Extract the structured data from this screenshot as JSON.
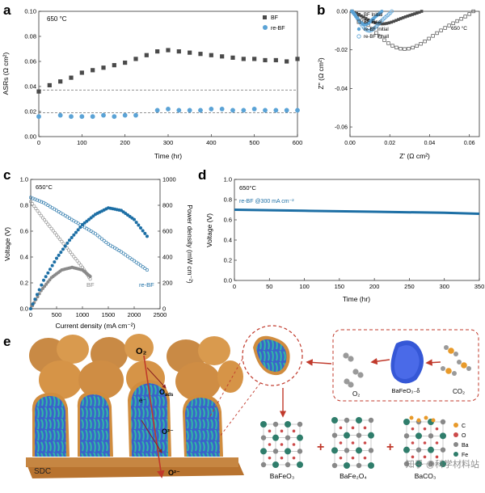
{
  "panels": [
    {
      "id": "a",
      "letter": "a",
      "temperature": "650 °C",
      "chart_data": {
        "type": "scatter",
        "xlabel": "Time (hr)",
        "ylabel": "ASRs (Ω cm²)",
        "xlim": [
          0,
          600
        ],
        "ylim": [
          0,
          0.1
        ],
        "xticks": [
          "0",
          "100",
          "200",
          "300",
          "400",
          "500",
          "600"
        ],
        "yticks": [
          "0.00",
          "0.02",
          "0.04",
          "0.06",
          "0.08",
          "0.10"
        ],
        "legend_position": "top-right",
        "hlines": [
          0.037,
          0.019
        ],
        "series": [
          {
            "name": "BF",
            "marker": "square",
            "color": "#4a4a4a",
            "x": [
              0,
              25,
              50,
              75,
              100,
              125,
              150,
              175,
              200,
              225,
              250,
              275,
              300,
              325,
              350,
              375,
              400,
              425,
              450,
              475,
              500,
              525,
              550,
              575,
              600
            ],
            "y": [
              0.036,
              0.041,
              0.044,
              0.047,
              0.051,
              0.053,
              0.055,
              0.057,
              0.059,
              0.062,
              0.065,
              0.068,
              0.069,
              0.068,
              0.067,
              0.066,
              0.065,
              0.064,
              0.063,
              0.062,
              0.062,
              0.061,
              0.061,
              0.06,
              0.062
            ]
          },
          {
            "name": "re-BF",
            "marker": "circle",
            "color": "#5ba3d6",
            "x": [
              0,
              50,
              75,
              100,
              125,
              150,
              175,
              200,
              225,
              275,
              300,
              325,
              350,
              375,
              400,
              425,
              450,
              475,
              500,
              525,
              550,
              575,
              600
            ],
            "y": [
              0.016,
              0.017,
              0.016,
              0.016,
              0.016,
              0.017,
              0.016,
              0.017,
              0.017,
              0.021,
              0.022,
              0.021,
              0.021,
              0.021,
              0.022,
              0.022,
              0.021,
              0.021,
              0.022,
              0.021,
              0.021,
              0.021,
              0.021
            ]
          }
        ]
      }
    },
    {
      "id": "b",
      "letter": "b",
      "temperature": "650 °C",
      "chart_data": {
        "type": "scatter",
        "xlabel": "Z' (Ω cm²)",
        "ylabel": "Z'' (Ω cm²)",
        "xlim": [
          0,
          0.065
        ],
        "ylim": [
          -0.065,
          0
        ],
        "xticks": [
          "0.00",
          "0.02",
          "0.04",
          "0.06"
        ],
        "yticks": [
          "0.00",
          "-0.02",
          "-0.04",
          "-0.06"
        ],
        "legend_position": "top-left",
        "series": [
          {
            "name": "BF Initial",
            "marker": "filled-square",
            "color": "#4a4a4a",
            "r0": 0.001,
            "r1": 0.036,
            "peak": 0.0055
          },
          {
            "name": "BF Final",
            "marker": "open-square",
            "color": "#4a4a4a",
            "r0": 0.001,
            "r1": 0.062,
            "peak": 0.0165
          },
          {
            "name": "re-BF Initial",
            "marker": "filled-circle",
            "color": "#5ba3d6",
            "r0": 0.001,
            "r1": 0.016,
            "peak": 0.0058
          },
          {
            "name": "re-BF Finall",
            "marker": "open-circle",
            "color": "#5ba3d6",
            "r0": 0.001,
            "r1": 0.021,
            "peak": 0.0085
          }
        ]
      }
    },
    {
      "id": "c",
      "letter": "c",
      "temperature": "650°C",
      "chart_data": {
        "type": "line",
        "xlabel": "Current density (mA cm⁻²)",
        "ylabel": "Voltage (V)",
        "y2label": "Power density (mW cm⁻²)",
        "xlim": [
          0,
          2500
        ],
        "ylim": [
          0,
          1.0
        ],
        "y2lim": [
          0,
          1000
        ],
        "xticks": [
          "0",
          "500",
          "1000",
          "1500",
          "2000",
          "2500"
        ],
        "yticks": [
          "0.0",
          "0.2",
          "0.4",
          "0.6",
          "0.8",
          "1.0"
        ],
        "y2ticks": [
          "0",
          "200",
          "400",
          "600",
          "800",
          "1000"
        ],
        "series": [
          {
            "name": "BF",
            "kind": "voltage",
            "color": "#8a8a8a",
            "x": [
              0,
              200,
              400,
              600,
              800,
              1000,
              1150
            ],
            "y": [
              0.83,
              0.72,
              0.62,
              0.52,
              0.42,
              0.32,
              0.23
            ]
          },
          {
            "name": "BF",
            "kind": "power",
            "color": "#8a8a8a",
            "x": [
              0,
              200,
              400,
              600,
              800,
              1000,
              1150
            ],
            "y": [
              0,
              140,
              240,
              300,
              320,
              300,
              250
            ]
          },
          {
            "name": "re-BF",
            "kind": "voltage",
            "color": "#1d6fa5",
            "x": [
              0,
              250,
              500,
              750,
              1000,
              1250,
              1500,
              1750,
              2000,
              2250
            ],
            "y": [
              0.86,
              0.82,
              0.76,
              0.7,
              0.64,
              0.58,
              0.5,
              0.44,
              0.37,
              0.3
            ]
          },
          {
            "name": "re-BF",
            "kind": "power",
            "color": "#1d6fa5",
            "x": [
              0,
              250,
              500,
              750,
              1000,
              1250,
              1500,
              1750,
              2000,
              2250
            ],
            "y": [
              0,
              220,
              390,
              530,
              650,
              730,
              780,
              760,
              690,
              560
            ]
          }
        ]
      }
    },
    {
      "id": "d",
      "letter": "d",
      "temperature": "650°C",
      "series_label": "re-BF @300 mA cm⁻²",
      "chart_data": {
        "type": "line",
        "xlabel": "Time (hr)",
        "ylabel": "Voltage (V)",
        "xlim": [
          0,
          350
        ],
        "ylim": [
          0,
          1.0
        ],
        "xticks": [
          "0",
          "50",
          "100",
          "150",
          "200",
          "250",
          "300",
          "350"
        ],
        "yticks": [
          "0.0",
          "0.2",
          "0.4",
          "0.6",
          "0.8",
          "1.0"
        ],
        "series": [
          {
            "name": "re-BF @300 mA cm⁻²",
            "color": "#1d6fa5",
            "x": [
              0,
              100,
              200,
              300,
              350
            ],
            "y": [
              0.7,
              0.69,
              0.68,
              0.67,
              0.66
            ]
          }
        ]
      }
    }
  ],
  "panel_e": {
    "letter": "e",
    "labels": {
      "o2_top": "O₂",
      "o_ads": "O",
      "o_ads_sub": "ads",
      "electron": "e⁻",
      "o2minus_a": "O²⁻",
      "o2minus_b": "O²⁻",
      "o2minus_bottom": "O²⁻",
      "sdc": "SDC",
      "o2_small": "O₂",
      "co2": "CO₂",
      "bafeo3_delta": "BaFeO₃₋δ",
      "bafeo3": "BaFeO₃",
      "bafe2o4": "BaFe₂O₄",
      "baco3": "BaCO₃",
      "legend_c": "C",
      "legend_o": "O",
      "legend_ba": "Ba",
      "legend_fe": "Fe",
      "watermark": "知乎 @科学材料站"
    },
    "colors": {
      "sdc": "#c68642",
      "particle": "#d99a4e",
      "grain_blue": "#3a63c9",
      "grain_teal": "#31b8a6",
      "arrow": "#c0392b",
      "dashed": "#c0392b",
      "fe": "#2f7d6b",
      "ba": "#888888",
      "o": "#cc4a4a",
      "c": "#e89a2a"
    }
  }
}
